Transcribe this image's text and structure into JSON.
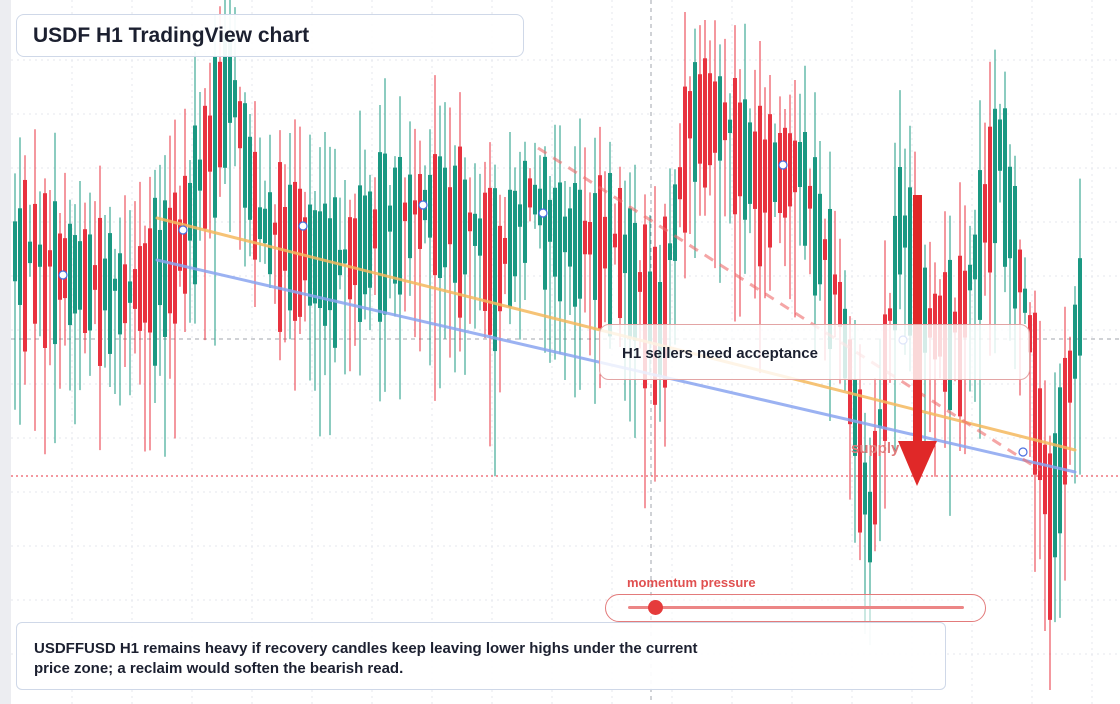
{
  "chart_data": {
    "type": "candlestick",
    "title": "USDF H1 TradingView chart",
    "colors": {
      "up": "#1a9882",
      "down": "#e8323f",
      "trendline_orange": "#f4b85e",
      "trendline_blue": "#8aa4f0",
      "arrow": "#e02828"
    },
    "annotations": {
      "box_label": "H1 sellers need acceptance",
      "supply_label": "supply",
      "momentum_label": "momentum pressure",
      "momentum_level": 0.08,
      "description": "USDFFUSD H1 remains heavy if recovery candles keep leaving lower highs under the current price zone; a reclaim would soften the bearish read."
    }
  }
}
